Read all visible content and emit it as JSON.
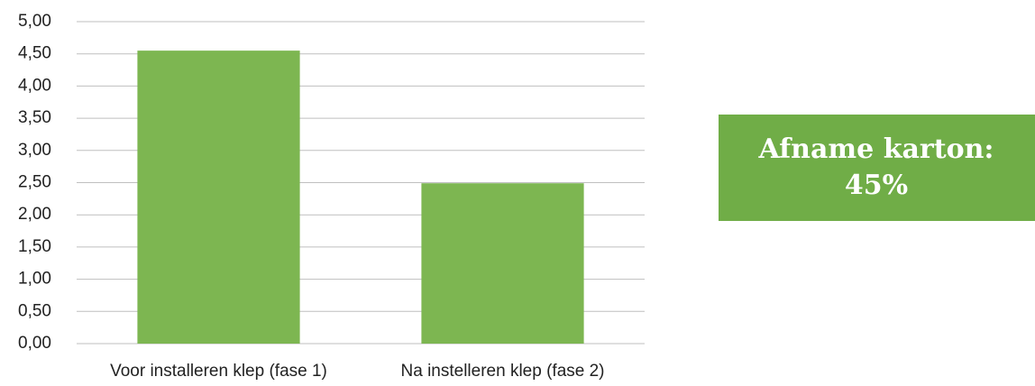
{
  "chart_data": {
    "type": "bar",
    "categories": [
      "Voor installeren klep (fase 1)",
      "Na instelleren klep (fase 2)"
    ],
    "values": [
      4.55,
      2.49
    ],
    "color": "#7db651",
    "ylim": [
      0,
      5
    ],
    "yticks": [
      {
        "value": 0,
        "label": "0,00"
      },
      {
        "value": 0.5,
        "label": "0,50"
      },
      {
        "value": 1,
        "label": "1,00"
      },
      {
        "value": 1.5,
        "label": "1,50"
      },
      {
        "value": 2,
        "label": "2,00"
      },
      {
        "value": 2.5,
        "label": "2,50"
      },
      {
        "value": 3,
        "label": "3,00"
      },
      {
        "value": 3.5,
        "label": "3,50"
      },
      {
        "value": 4,
        "label": "4,00"
      },
      {
        "value": 4.5,
        "label": "4,50"
      },
      {
        "value": 5,
        "label": "5,00"
      }
    ],
    "grid": true,
    "annotation": [
      "Afname karton:",
      "45%"
    ],
    "annotation_color": "#70ad47"
  }
}
